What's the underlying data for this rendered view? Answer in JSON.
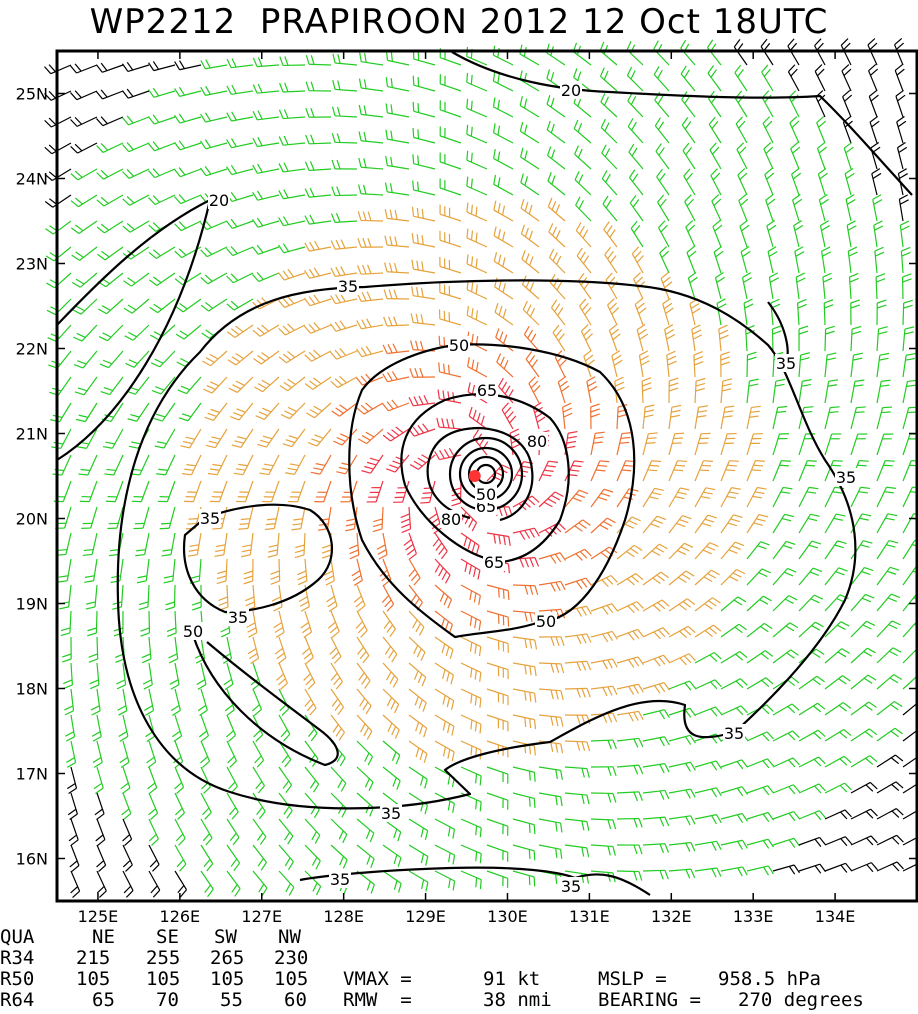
{
  "title": "WP2212  PRAPIROON 2012 12 Oct 18UTC",
  "map": {
    "lon_labels": [
      "125E",
      "126E",
      "127E",
      "128E",
      "129E",
      "130E",
      "131E",
      "132E",
      "133E",
      "134E"
    ],
    "lat_labels": [
      "25N",
      "24N",
      "23N",
      "22N",
      "21N",
      "20N",
      "19N",
      "18N",
      "17N",
      "16N"
    ],
    "lon_range": [
      124.5,
      135.0
    ],
    "lat_range": [
      15.5,
      25.5
    ],
    "storm_center": {
      "lon": 129.6,
      "lat": 20.5,
      "color": "#ff3333"
    },
    "contour_labels": [
      "20",
      "20",
      "35",
      "35",
      "35",
      "35",
      "35",
      "35",
      "35",
      "35",
      "35",
      "50",
      "50",
      "50",
      "65",
      "65",
      "65",
      "80",
      "80",
      "50"
    ],
    "wind_colors": {
      "lt34": "#000000",
      "r34": "#22cc22",
      "r50": "#e6a23c",
      "r64": "#f07030",
      "r80": "#ee3344"
    }
  },
  "stats": {
    "header": [
      "QUA",
      "NE",
      "SE",
      "SW",
      "NW"
    ],
    "rows": [
      {
        "label": "R34",
        "values": [
          "215",
          "255",
          "265",
          "230"
        ]
      },
      {
        "label": "R50",
        "values": [
          "105",
          "105",
          "105",
          "105"
        ]
      },
      {
        "label": "R64",
        "values": [
          "65",
          "70",
          "55",
          "60"
        ]
      }
    ],
    "vmax_label": "VMAX =",
    "vmax_value": "91 kt",
    "mslp_label": "MSLP =",
    "mslp_value": "958.5 hPa",
    "rmw_label": "RMW  =",
    "rmw_value": "38 nmi",
    "bearing_label": "BEARING =",
    "bearing_value": "270 degrees"
  }
}
